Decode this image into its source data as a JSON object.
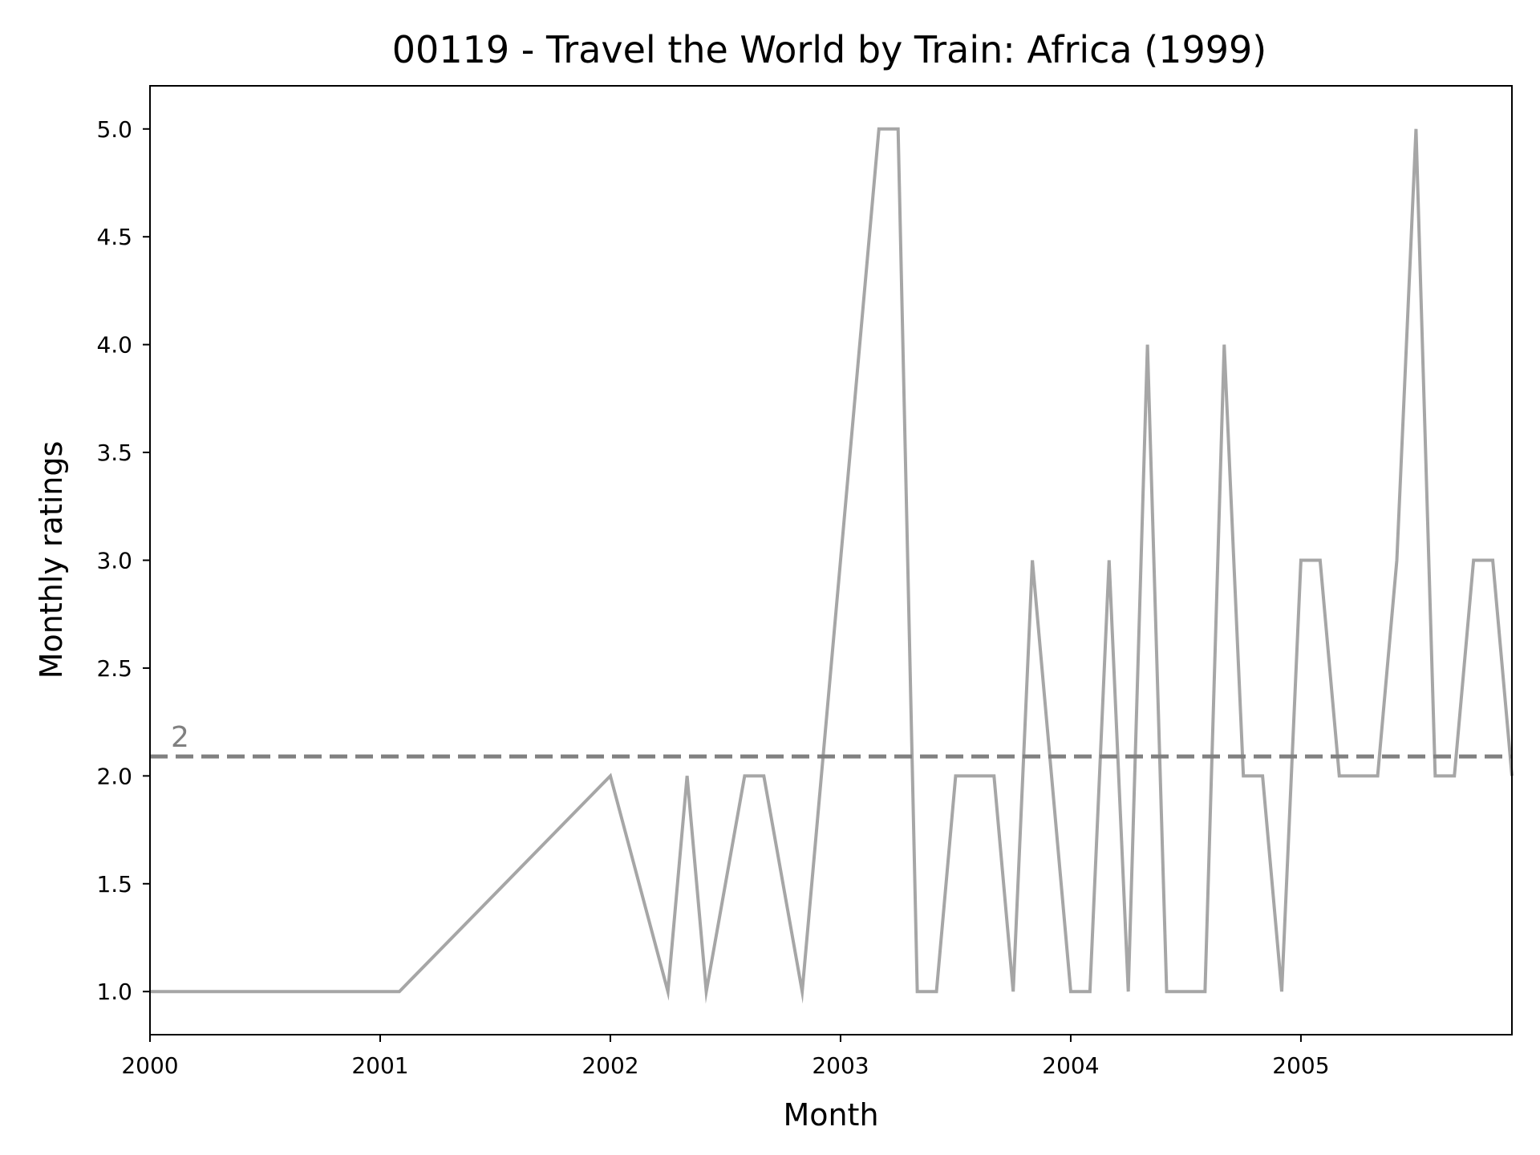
{
  "chart_data": {
    "type": "line",
    "title": "00119 - Travel the World by Train: Africa (1999)",
    "xlabel": "Month",
    "ylabel": "Monthly ratings",
    "xlim": [
      "2000-01",
      "2005-12"
    ],
    "ylim": [
      0.8,
      5.2
    ],
    "x_ticks": [
      "2000",
      "2001",
      "2002",
      "2003",
      "2004",
      "2005"
    ],
    "y_ticks": [
      "1.0",
      "1.5",
      "2.0",
      "2.5",
      "3.0",
      "3.5",
      "4.0",
      "4.5",
      "5.0"
    ],
    "grid": false,
    "legend": "none",
    "series": [
      {
        "color": "#a6a6a6",
        "points": [
          [
            "2000-01",
            1
          ],
          [
            "2000-02",
            1
          ],
          [
            "2000-03",
            1
          ],
          [
            "2000-04",
            1
          ],
          [
            "2000-05",
            1
          ],
          [
            "2000-06",
            1
          ],
          [
            "2000-07",
            1
          ],
          [
            "2000-08",
            1
          ],
          [
            "2000-09",
            1
          ],
          [
            "2000-10",
            1
          ],
          [
            "2000-11",
            1
          ],
          [
            "2000-12",
            1
          ],
          [
            "2001-01",
            1
          ],
          [
            "2001-02",
            1
          ],
          [
            "2002-01",
            2
          ],
          [
            "2002-04",
            1
          ],
          [
            "2002-05",
            2
          ],
          [
            "2002-06",
            1
          ],
          [
            "2002-08",
            2
          ],
          [
            "2002-09",
            2
          ],
          [
            "2002-11",
            1
          ],
          [
            "2003-03",
            5
          ],
          [
            "2003-04",
            5
          ],
          [
            "2003-05",
            1
          ],
          [
            "2003-06",
            1
          ],
          [
            "2003-07",
            2
          ],
          [
            "2003-08",
            2
          ],
          [
            "2003-09",
            2
          ],
          [
            "2003-10",
            1
          ],
          [
            "2003-11",
            3
          ],
          [
            "2004-01",
            1
          ],
          [
            "2004-02",
            1
          ],
          [
            "2004-03",
            3
          ],
          [
            "2004-04",
            1
          ],
          [
            "2004-05",
            4
          ],
          [
            "2004-06",
            1
          ],
          [
            "2004-07",
            1
          ],
          [
            "2004-08",
            1
          ],
          [
            "2004-09",
            4
          ],
          [
            "2004-10",
            2
          ],
          [
            "2004-11",
            2
          ],
          [
            "2004-12",
            1
          ],
          [
            "2005-01",
            3
          ],
          [
            "2005-02",
            3
          ],
          [
            "2005-03",
            2
          ],
          [
            "2005-04",
            2
          ],
          [
            "2005-05",
            2
          ],
          [
            "2005-06",
            3
          ],
          [
            "2005-07",
            5
          ],
          [
            "2005-08",
            2
          ],
          [
            "2005-09",
            2
          ],
          [
            "2005-10",
            3
          ],
          [
            "2005-11",
            3
          ],
          [
            "2005-12",
            2
          ]
        ]
      }
    ],
    "reference_line": {
      "value": 2.09,
      "label": "2",
      "color": "#808080",
      "style": "dashed"
    }
  }
}
